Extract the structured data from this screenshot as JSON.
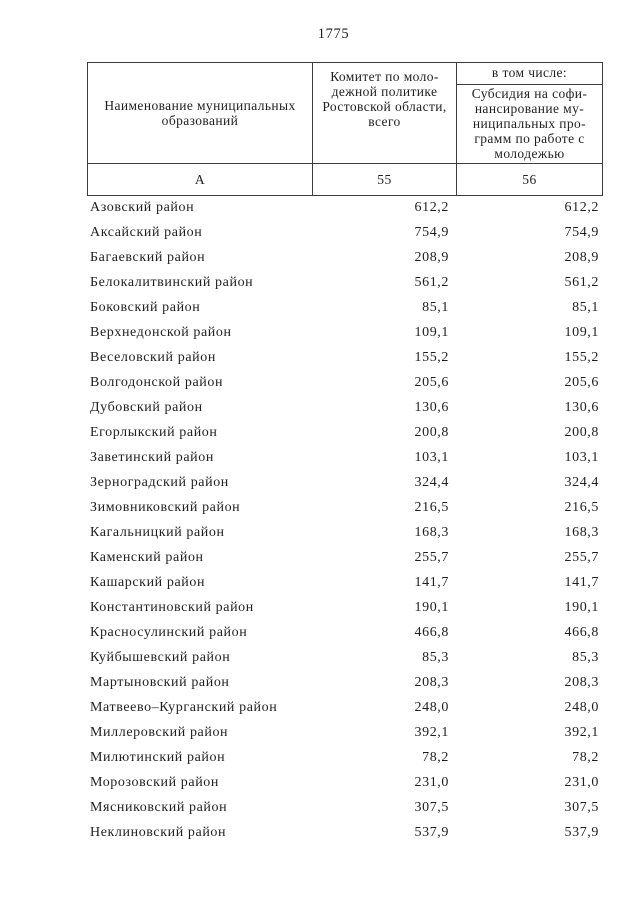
{
  "page_number": "1775",
  "colors": {
    "ink": "#1f1f1f",
    "rule_line": "#3c3c3c",
    "paper": "#ffffff"
  },
  "table": {
    "header": {
      "name_lines": [
        "Наименование муниципальных",
        "образований"
      ],
      "col55_lines": [
        "Комитет по моло-",
        "дежной политике",
        "Ростовской области,",
        "всего"
      ],
      "col56_group_label": "в том числе:",
      "col56_lines": [
        "Субсидия на софи-",
        "нансирование му-",
        "ниципальных про-",
        "грамм по работе с",
        "молодежью"
      ]
    },
    "key_row": [
      "А",
      "55",
      "56"
    ],
    "rows": [
      {
        "name": "Азовский район",
        "total": "612,2",
        "subsidy": "612,2"
      },
      {
        "name": "Аксайский район",
        "total": "754,9",
        "subsidy": "754,9"
      },
      {
        "name": "Багаевский район",
        "total": "208,9",
        "subsidy": "208,9"
      },
      {
        "name": "Белокалитвинский район",
        "total": "561,2",
        "subsidy": "561,2"
      },
      {
        "name": "Боковский район",
        "total": "85,1",
        "subsidy": "85,1"
      },
      {
        "name": "Верхнедонской район",
        "total": "109,1",
        "subsidy": "109,1"
      },
      {
        "name": "Веселовский район",
        "total": "155,2",
        "subsidy": "155,2"
      },
      {
        "name": "Волгодонской район",
        "total": "205,6",
        "subsidy": "205,6"
      },
      {
        "name": "Дубовский район",
        "total": "130,6",
        "subsidy": "130,6"
      },
      {
        "name": "Егорлыкский район",
        "total": "200,8",
        "subsidy": "200,8"
      },
      {
        "name": "Заветинский район",
        "total": "103,1",
        "subsidy": "103,1"
      },
      {
        "name": "Зерноградский район",
        "total": "324,4",
        "subsidy": "324,4"
      },
      {
        "name": "Зимовниковский район",
        "total": "216,5",
        "subsidy": "216,5"
      },
      {
        "name": "Кагальницкий район",
        "total": "168,3",
        "subsidy": "168,3"
      },
      {
        "name": "Каменский район",
        "total": "255,7",
        "subsidy": "255,7"
      },
      {
        "name": "Кашарский район",
        "total": "141,7",
        "subsidy": "141,7"
      },
      {
        "name": "Константиновский район",
        "total": "190,1",
        "subsidy": "190,1"
      },
      {
        "name": "Красносулинский район",
        "total": "466,8",
        "subsidy": "466,8"
      },
      {
        "name": "Куйбышевский район",
        "total": "85,3",
        "subsidy": "85,3"
      },
      {
        "name": "Мартыновский район",
        "total": "208,3",
        "subsidy": "208,3"
      },
      {
        "name": "Матвеево–Курганский район",
        "total": "248,0",
        "subsidy": "248,0"
      },
      {
        "name": "Миллеровский район",
        "total": "392,1",
        "subsidy": "392,1"
      },
      {
        "name": "Милютинский район",
        "total": "78,2",
        "subsidy": "78,2"
      },
      {
        "name": "Морозовский район",
        "total": "231,0",
        "subsidy": "231,0"
      },
      {
        "name": "Мясниковский район",
        "total": "307,5",
        "subsidy": "307,5"
      },
      {
        "name": "Неклиновский район",
        "total": "537,9",
        "subsidy": "537,9"
      }
    ]
  }
}
